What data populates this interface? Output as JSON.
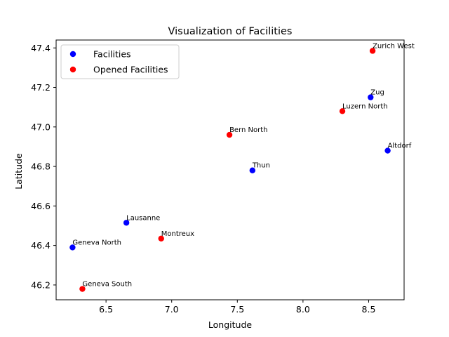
{
  "chart_data": {
    "type": "scatter",
    "title": "Visualization of Facilities",
    "xlabel": "Longitude",
    "ylabel": "Latitude",
    "xlim": [
      6.12,
      8.77
    ],
    "ylim": [
      46.125,
      47.44
    ],
    "xticks": [
      6.5,
      7.0,
      7.5,
      8.0,
      8.5
    ],
    "xtick_labels": [
      "6.5",
      "7.0",
      "7.5",
      "8.0",
      "8.5"
    ],
    "yticks": [
      46.2,
      46.4,
      46.6,
      46.8,
      47.0,
      47.2,
      47.4
    ],
    "ytick_labels": [
      "46.2",
      "46.4",
      "46.6",
      "46.8",
      "47.0",
      "47.2",
      "47.4"
    ],
    "grid": false,
    "legend_position": "top-left",
    "series": [
      {
        "name": "Facilities",
        "color": "#0000ff",
        "points": [
          {
            "label": "Zug",
            "x": 8.515,
            "y": 47.15
          },
          {
            "label": "Altdorf",
            "x": 8.645,
            "y": 46.88
          },
          {
            "label": "Thun",
            "x": 7.615,
            "y": 46.78
          },
          {
            "label": "Lausanne",
            "x": 6.655,
            "y": 46.515
          },
          {
            "label": "Geneva North",
            "x": 6.245,
            "y": 46.39
          }
        ]
      },
      {
        "name": "Opened Facilities",
        "color": "#ff0000",
        "points": [
          {
            "label": "Zurich West",
            "x": 8.53,
            "y": 47.385
          },
          {
            "label": "Luzern North",
            "x": 8.3,
            "y": 47.08
          },
          {
            "label": "Bern North",
            "x": 7.44,
            "y": 46.96
          },
          {
            "label": "Montreux",
            "x": 6.92,
            "y": 46.435
          },
          {
            "label": "Geneva South",
            "x": 6.32,
            "y": 46.18
          }
        ]
      }
    ]
  }
}
